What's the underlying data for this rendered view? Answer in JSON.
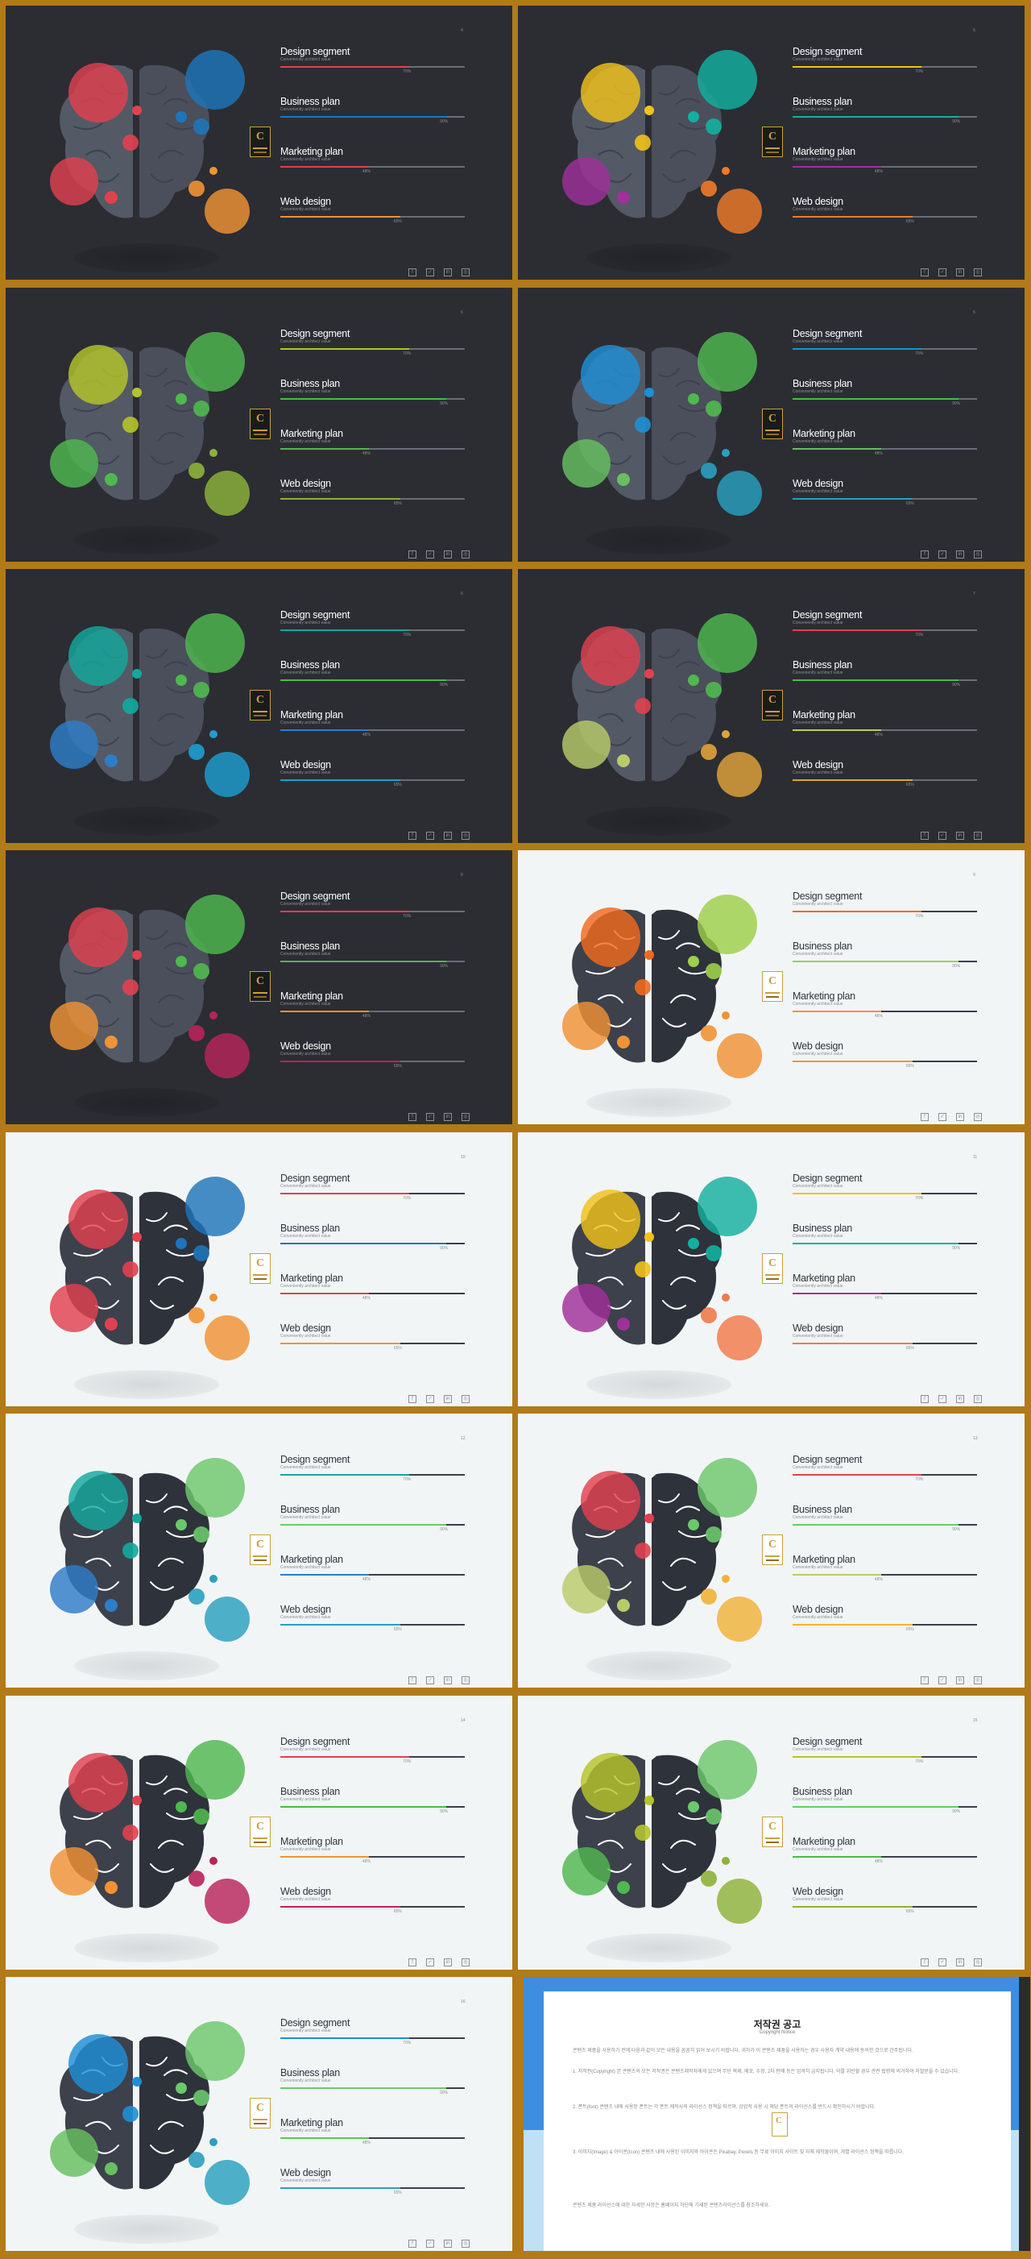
{
  "items": [
    {
      "title": "Design segment",
      "subtitle": "Conveniently architect value",
      "pct": "70%",
      "value": 0.7
    },
    {
      "title": "Business plan",
      "subtitle": "Conveniently architect value",
      "pct": "90%",
      "value": 0.9
    },
    {
      "title": "Marketing plan",
      "subtitle": "Conveniently architect value",
      "pct": "48%",
      "value": 0.48
    },
    {
      "title": "Web design",
      "subtitle": "Conveniently architect value",
      "pct": "65%",
      "value": 0.65
    }
  ],
  "social_icons": [
    {
      "name": "facebook-icon",
      "glyph": "f"
    },
    {
      "name": "twitter-icon",
      "glyph": "✓"
    },
    {
      "name": "linkedin-icon",
      "glyph": "in"
    },
    {
      "name": "instagram-icon",
      "glyph": "◎"
    }
  ],
  "slides": [
    {
      "page": "4",
      "theme": "dark",
      "colors": [
        "#e0414f",
        "#1e75bb",
        "#e0414f",
        "#f09334"
      ]
    },
    {
      "page": "5",
      "theme": "dark",
      "colors": [
        "#f0c21a",
        "#13b0a0",
        "#a0309a",
        "#f07a2a"
      ]
    },
    {
      "page": "6",
      "theme": "dark",
      "colors": [
        "#b4c42a",
        "#4fb84f",
        "#4fb84f",
        "#8db23a"
      ]
    },
    {
      "page": "5",
      "theme": "dark",
      "colors": [
        "#1e8fd5",
        "#4fb84f",
        "#66c060",
        "#2aa0c0"
      ]
    },
    {
      "page": "6",
      "theme": "dark",
      "colors": [
        "#13a89e",
        "#4fb84f",
        "#2e7dc8",
        "#1e9ed0"
      ]
    },
    {
      "page": "7",
      "theme": "dark",
      "colors": [
        "#e0414f",
        "#4fb84f",
        "#b8cb6a",
        "#e2a23a"
      ]
    },
    {
      "page": "8",
      "theme": "dark",
      "colors": [
        "#e0414f",
        "#4fb84f",
        "#f09334",
        "#b8245a"
      ]
    },
    {
      "page": "9",
      "theme": "light",
      "colors": [
        "#f06a1e",
        "#9dd04a",
        "#f09334",
        "#f09334"
      ]
    },
    {
      "page": "10",
      "theme": "light",
      "colors": [
        "#e0414f",
        "#1e75bb",
        "#e0414f",
        "#f09334"
      ]
    },
    {
      "page": "11",
      "theme": "light",
      "colors": [
        "#f0c21a",
        "#13b0a0",
        "#a0309a",
        "#f07a4a"
      ]
    },
    {
      "page": "12",
      "theme": "light",
      "colors": [
        "#13a89e",
        "#6cc86c",
        "#2e7dc8",
        "#2aa0c0"
      ]
    },
    {
      "page": "13",
      "theme": "light",
      "colors": [
        "#e0414f",
        "#6cc86c",
        "#b8cb6a",
        "#f0b23a"
      ]
    },
    {
      "page": "14",
      "theme": "light",
      "colors": [
        "#e0414f",
        "#4fb84f",
        "#f09334",
        "#b8245a"
      ]
    },
    {
      "page": "15",
      "theme": "light",
      "colors": [
        "#b4c42a",
        "#6cc86c",
        "#4fb84f",
        "#8db23a"
      ]
    },
    {
      "page": "16",
      "theme": "light",
      "colors": [
        "#1e8fd5",
        "#6cc86c",
        "#66c060",
        "#2aa0c0"
      ]
    }
  ],
  "copyright": {
    "title": "저작권 공고",
    "subtitle": "Copyright Notice",
    "p0": "콘텐츠 제품을 사용하기 전에 다음과 같이 모든 내용을 꼼꼼히 읽어 보시기 바랍니다. 귀하가 이 콘텐츠 제품을 사용하는 경우 사용자 계약 내용에 동의한 것으로 간주됩니다.",
    "p1": "1. 저작권(Copyright) 본 콘텐츠의 모든 저작권은 콘텐츠제작자에게 있으며 무단 복제, 배포, 수정, 2차 판매 등은 엄격히 금지됩니다. 이를 위반할 경우 관련 법령에 의거하여 처벌받을 수 있습니다.",
    "p2": "2. 폰트(font) 콘텐츠 내에 사용된 폰트는 각 폰트 제작사의 라이선스 정책을 따르며, 상업적 사용 시 해당 폰트의 라이선스를 반드시 확인하시기 바랍니다.",
    "p3": "3. 이미지(Image) & 아이콘(Icon) 콘텐츠 내에 사용된 이미지와 아이콘은 Pixabay, Pexels 등 무료 이미지 사이트 및 자체 제작물이며, 개별 라이선스 정책을 따릅니다.",
    "p4": "콘텐츠 제품 라이선스에 대한 자세한 사항은 홈페이지 하단에 기재된 콘텐츠라이선스를 참조하세요."
  }
}
